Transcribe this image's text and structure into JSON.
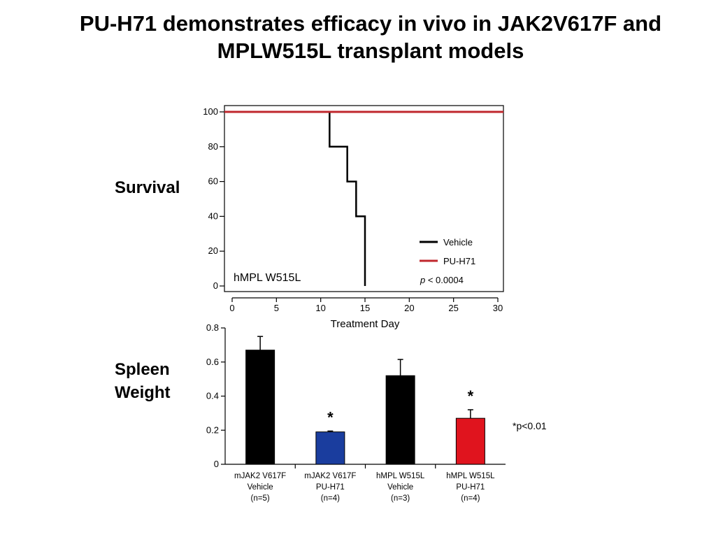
{
  "slide": {
    "title_line1": "PU-H71 demonstrates efficacy in vivo in JAK2V617F and",
    "title_line2": "MPLW515L transplant models",
    "survival_label": "Survival",
    "spleen_label_line1": "Spleen",
    "spleen_label_line2": "Weight"
  },
  "chart_data": [
    {
      "type": "line",
      "title": "",
      "xlabel": "Treatment Day",
      "ylabel": "",
      "xlim": [
        0,
        30
      ],
      "ylim": [
        0,
        100
      ],
      "xticks": [
        "0",
        "5",
        "10",
        "15",
        "20",
        "25",
        "30"
      ],
      "yticks": [
        "0",
        "20",
        "40",
        "60",
        "80",
        "100"
      ],
      "annotation": "hMPL W515L",
      "pvalue": {
        "italic": "p",
        "text": " < 0.0004"
      },
      "legend_position": "bottom-right",
      "series": [
        {
          "name": "Vehicle",
          "color": "#000000",
          "step": true,
          "x": [
            0,
            11,
            11,
            13,
            13,
            14,
            14,
            15,
            15
          ],
          "y": [
            100,
            100,
            80,
            80,
            60,
            60,
            40,
            40,
            0
          ]
        },
        {
          "name": "PU-H71",
          "color": "#c0272d",
          "step": false,
          "x": [
            0,
            30
          ],
          "y": [
            100,
            100
          ]
        }
      ]
    },
    {
      "type": "bar",
      "title": "",
      "xlabel": "",
      "ylabel": "",
      "ylim": [
        0,
        0.8
      ],
      "yticks": [
        "0",
        "0.2",
        "0.4",
        "0.6",
        "0.8"
      ],
      "categories": [
        [
          "mJAK2 V617F",
          "Vehicle",
          "(n=5)"
        ],
        [
          "mJAK2 V617F",
          "PU-H71",
          "(n=4)"
        ],
        [
          "hMPL W515L",
          "Vehicle",
          "(n=3)"
        ],
        [
          "hMPL W515L",
          "PU-H71",
          "(n=4)"
        ]
      ],
      "values": [
        0.67,
        0.19,
        0.52,
        0.27
      ],
      "errors": [
        0.08,
        0.005,
        0.095,
        0.05
      ],
      "colors": [
        "#000000",
        "#1a3d9e",
        "#000000",
        "#e0141e"
      ],
      "significant": [
        false,
        true,
        false,
        true
      ],
      "significance_marker": "*",
      "footnote": "*p<0.01"
    }
  ]
}
